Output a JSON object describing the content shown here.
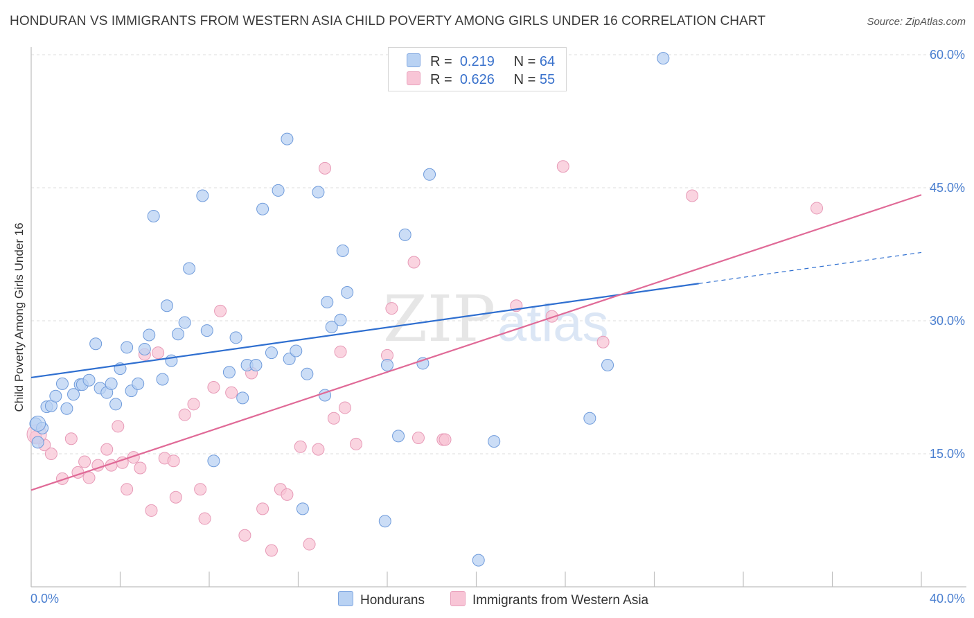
{
  "title": "HONDURAN VS IMMIGRANTS FROM WESTERN ASIA CHILD POVERTY AMONG GIRLS UNDER 16 CORRELATION CHART",
  "source": "Source: ZipAtlas.com",
  "watermark": {
    "zip": "ZIP",
    "atlas": "atlas"
  },
  "legend": {
    "r_label": "R =",
    "n_label": "N =",
    "series1": {
      "r": "0.219",
      "n": "64"
    },
    "series2": {
      "r": "0.626",
      "n": "55"
    }
  },
  "bottom_legend": {
    "series1": "Hondurans",
    "series2": "Immigrants from Western Asia"
  },
  "colors": {
    "blue": "#4a7fd0",
    "blue_fill": "#b9d2f3",
    "blue_line": "#2f6fd0",
    "pink_fill": "#f8c5d6",
    "pink_line": "#e06a97"
  },
  "chart_data": {
    "type": "scatter",
    "title": "HONDURAN VS IMMIGRANTS FROM WESTERN ASIA CHILD POVERTY AMONG GIRLS UNDER 16 CORRELATION CHART",
    "xlabel": "",
    "ylabel": "Child Poverty Among Girls Under 16",
    "xlim": [
      0,
      40
    ],
    "ylim": [
      0,
      60
    ],
    "x_tick_labels": [
      "0.0%",
      "40.0%"
    ],
    "y_ticks": [
      15,
      30,
      45,
      60
    ],
    "y_tick_labels": [
      "15.0%",
      "30.0%",
      "45.0%",
      "60.0%"
    ],
    "grid": true,
    "series": [
      {
        "name": "Hondurans",
        "color": "#b9d2f3",
        "trend": {
          "x": [
            0,
            30
          ],
          "y": [
            23.6,
            34.2
          ],
          "dashed_to": [
            40,
            37.7
          ]
        },
        "points": [
          [
            0.2,
            18.4
          ],
          [
            0.7,
            20.3
          ],
          [
            0.9,
            20.4
          ],
          [
            1.1,
            21.5
          ],
          [
            1.4,
            22.9
          ],
          [
            1.6,
            20.1
          ],
          [
            1.9,
            21.7
          ],
          [
            2.2,
            22.8
          ],
          [
            2.3,
            22.8
          ],
          [
            2.6,
            23.3
          ],
          [
            2.9,
            27.4
          ],
          [
            3.1,
            22.4
          ],
          [
            3.4,
            21.9
          ],
          [
            3.6,
            22.9
          ],
          [
            3.8,
            20.6
          ],
          [
            4.0,
            24.6
          ],
          [
            4.3,
            27.0
          ],
          [
            4.5,
            22.1
          ],
          [
            4.8,
            22.9
          ],
          [
            5.1,
            26.8
          ],
          [
            5.3,
            28.4
          ],
          [
            5.5,
            41.8
          ],
          [
            5.9,
            23.4
          ],
          [
            6.1,
            31.7
          ],
          [
            6.3,
            25.5
          ],
          [
            6.6,
            28.5
          ],
          [
            6.9,
            29.8
          ],
          [
            7.1,
            35.9
          ],
          [
            7.7,
            44.1
          ],
          [
            7.9,
            28.9
          ],
          [
            8.2,
            14.2
          ],
          [
            8.9,
            24.2
          ],
          [
            9.2,
            28.1
          ],
          [
            9.5,
            21.3
          ],
          [
            9.7,
            25.0
          ],
          [
            10.1,
            25.0
          ],
          [
            10.4,
            42.6
          ],
          [
            10.8,
            26.4
          ],
          [
            11.1,
            44.7
          ],
          [
            11.5,
            50.5
          ],
          [
            11.6,
            25.7
          ],
          [
            11.9,
            26.6
          ],
          [
            12.2,
            8.8
          ],
          [
            12.4,
            24.0
          ],
          [
            12.9,
            44.5
          ],
          [
            13.2,
            21.6
          ],
          [
            13.3,
            32.1
          ],
          [
            13.5,
            29.3
          ],
          [
            13.9,
            30.1
          ],
          [
            14.0,
            37.9
          ],
          [
            14.2,
            33.2
          ],
          [
            15.9,
            7.4
          ],
          [
            16.0,
            25.0
          ],
          [
            16.5,
            17.0
          ],
          [
            16.8,
            39.7
          ],
          [
            17.6,
            25.2
          ],
          [
            17.9,
            46.5
          ],
          [
            20.1,
            3.0
          ],
          [
            20.8,
            16.4
          ],
          [
            25.1,
            19.0
          ],
          [
            25.9,
            25.0
          ],
          [
            28.4,
            59.6
          ],
          [
            0.3,
            16.3
          ],
          [
            0.5,
            17.9
          ]
        ]
      },
      {
        "name": "Immigrants from Western Asia",
        "color": "#f8c5d6",
        "trend": {
          "x": [
            0,
            40
          ],
          "y": [
            10.9,
            44.2
          ]
        },
        "points": [
          [
            0.2,
            16.9
          ],
          [
            0.6,
            16.0
          ],
          [
            0.9,
            15.0
          ],
          [
            1.4,
            12.2
          ],
          [
            1.8,
            16.7
          ],
          [
            2.1,
            12.9
          ],
          [
            2.4,
            14.1
          ],
          [
            2.6,
            12.3
          ],
          [
            3.0,
            13.7
          ],
          [
            3.4,
            15.5
          ],
          [
            3.6,
            13.7
          ],
          [
            3.9,
            18.1
          ],
          [
            4.1,
            14.0
          ],
          [
            4.3,
            11.0
          ],
          [
            4.6,
            14.6
          ],
          [
            4.9,
            13.4
          ],
          [
            5.1,
            26.2
          ],
          [
            5.4,
            8.6
          ],
          [
            5.7,
            26.4
          ],
          [
            6.0,
            14.5
          ],
          [
            6.4,
            14.2
          ],
          [
            6.5,
            10.1
          ],
          [
            6.9,
            19.4
          ],
          [
            7.3,
            20.6
          ],
          [
            7.6,
            11.0
          ],
          [
            7.8,
            7.7
          ],
          [
            8.2,
            22.5
          ],
          [
            8.5,
            31.1
          ],
          [
            9.0,
            21.9
          ],
          [
            9.6,
            5.8
          ],
          [
            9.9,
            24.1
          ],
          [
            10.4,
            8.8
          ],
          [
            10.8,
            4.1
          ],
          [
            11.2,
            11.0
          ],
          [
            11.5,
            10.4
          ],
          [
            12.1,
            15.8
          ],
          [
            12.5,
            4.8
          ],
          [
            12.9,
            15.5
          ],
          [
            13.2,
            47.2
          ],
          [
            13.6,
            19.0
          ],
          [
            13.9,
            26.5
          ],
          [
            14.1,
            20.2
          ],
          [
            14.6,
            16.1
          ],
          [
            16.0,
            26.1
          ],
          [
            16.2,
            31.4
          ],
          [
            17.2,
            36.6
          ],
          [
            17.4,
            16.8
          ],
          [
            18.5,
            16.6
          ],
          [
            18.6,
            16.6
          ],
          [
            21.8,
            31.7
          ],
          [
            23.4,
            30.5
          ],
          [
            23.9,
            47.4
          ],
          [
            25.7,
            27.6
          ],
          [
            29.7,
            44.1
          ],
          [
            35.3,
            42.7
          ]
        ]
      }
    ]
  }
}
